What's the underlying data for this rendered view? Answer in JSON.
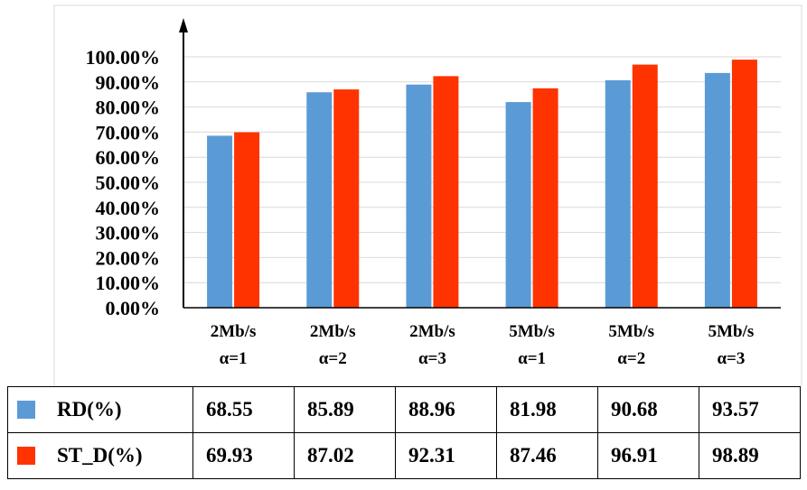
{
  "chart_data": {
    "type": "bar",
    "title": "",
    "xlabel": "",
    "ylabel": "",
    "ylim": [
      0,
      100
    ],
    "yticks": [
      "0.00%",
      "10.00%",
      "20.00%",
      "30.00%",
      "40.00%",
      "50.00%",
      "60.00%",
      "70.00%",
      "80.00%",
      "90.00%",
      "100.00%"
    ],
    "categories": [
      [
        "2Mb/s",
        "α=1"
      ],
      [
        "2Mb/s",
        "α=2"
      ],
      [
        "2Mb/s",
        "α=3"
      ],
      [
        "5Mb/s",
        "α=1"
      ],
      [
        "5Mb/s",
        "α=2"
      ],
      [
        "5Mb/s",
        "α=3"
      ]
    ],
    "series": [
      {
        "name": "RD(%)",
        "color": "#5b9bd5",
        "values": [
          68.55,
          85.89,
          88.96,
          81.98,
          90.68,
          93.57
        ]
      },
      {
        "name": "ST_D(%)",
        "color": "#ff3300",
        "values": [
          69.93,
          87.02,
          92.31,
          87.46,
          96.91,
          98.89
        ]
      }
    ],
    "grid": true,
    "legend": "data-table-below"
  },
  "table": {
    "rows": [
      {
        "label": "RD(%)",
        "color": "#5b9bd5",
        "values": [
          "68.55",
          "85.89",
          "88.96",
          "81.98",
          "90.68",
          "93.57"
        ]
      },
      {
        "label": "ST_D(%)",
        "color": "#ff3300",
        "values": [
          "69.93",
          "87.02",
          "92.31",
          "87.46",
          "96.91",
          "98.89"
        ]
      }
    ]
  }
}
